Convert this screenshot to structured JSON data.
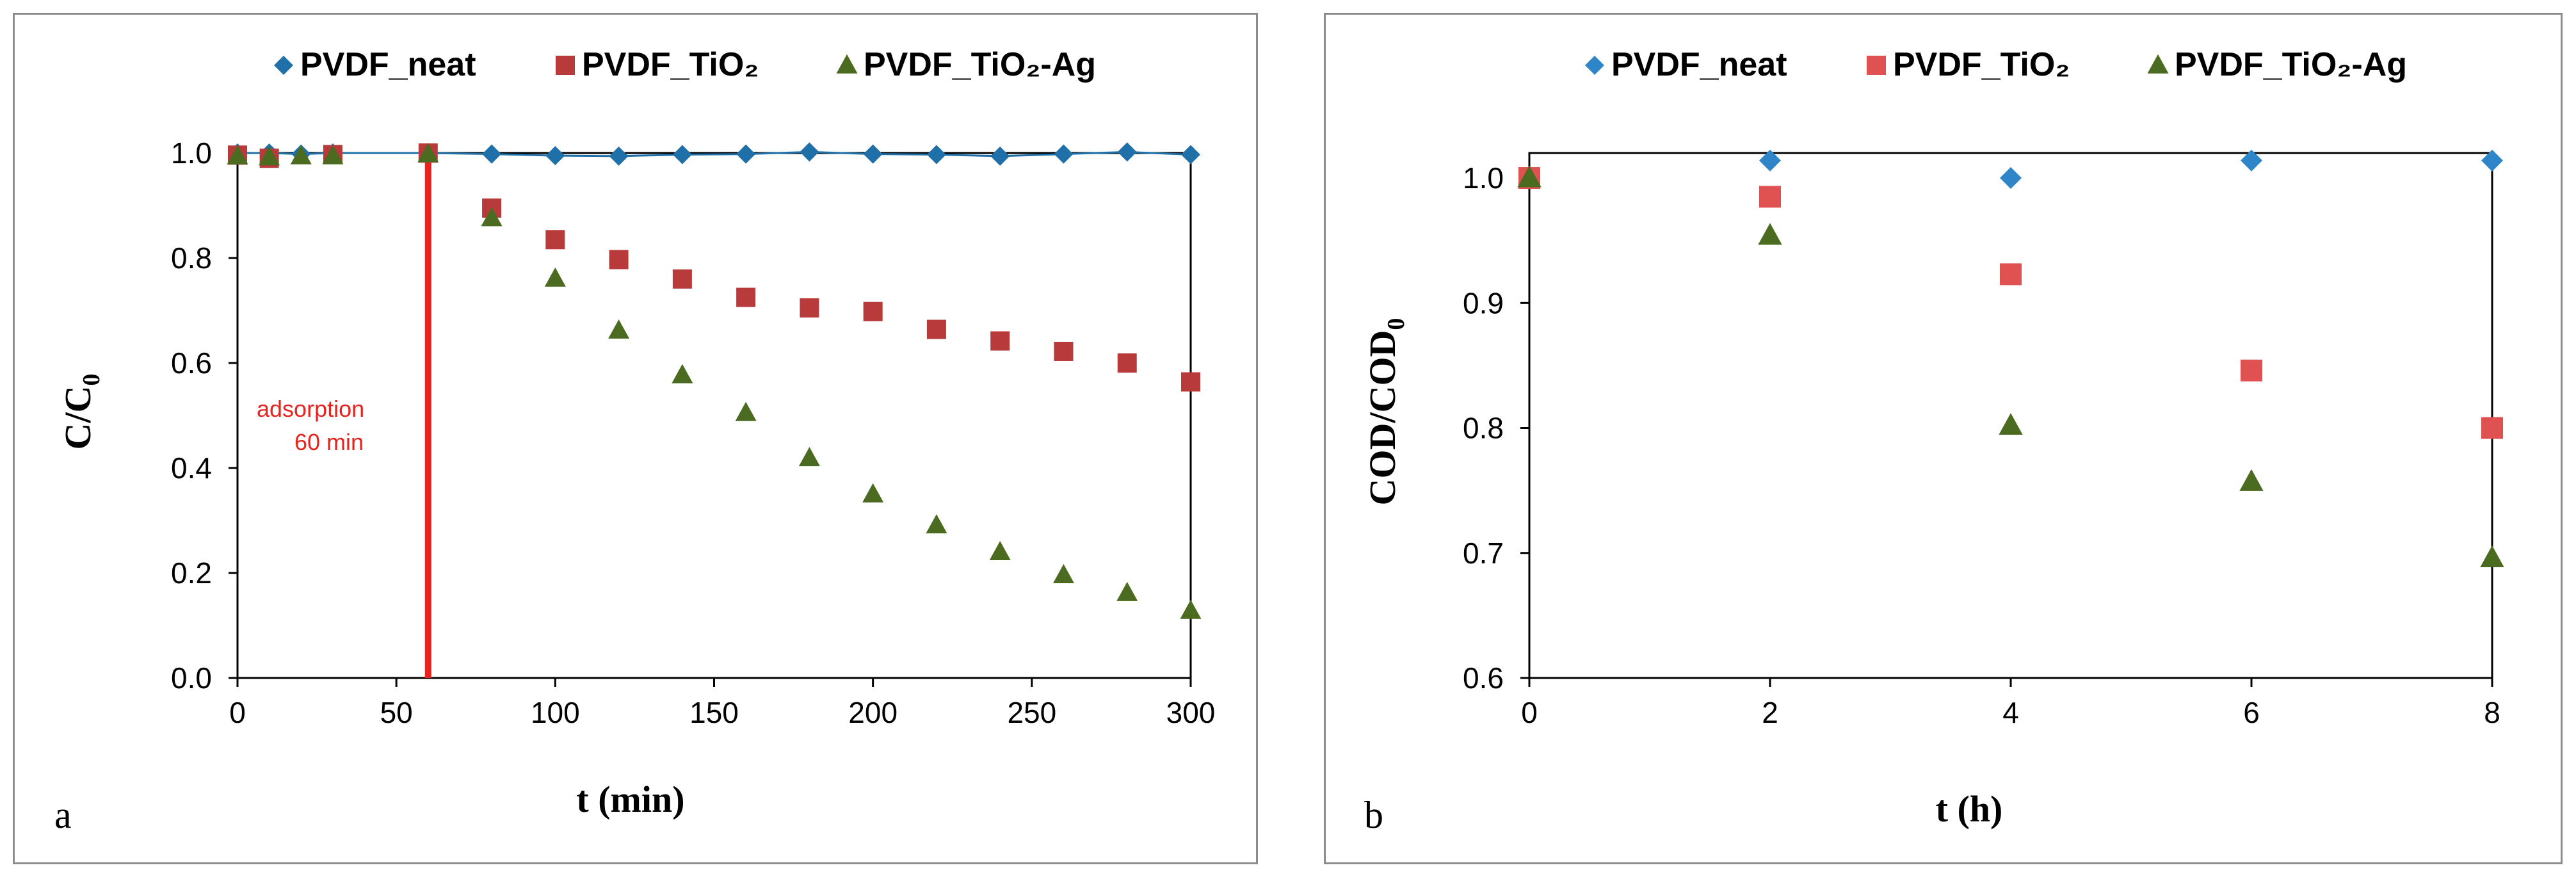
{
  "chart_data": [
    {
      "type": "scatter",
      "panel_label": "a",
      "xlabel": "t (min)",
      "ylabel_main": "C/C",
      "ylabel_sub": "0",
      "xlim": [
        0,
        300
      ],
      "ylim": [
        0,
        1.0
      ],
      "xticks": [
        0,
        50,
        100,
        150,
        200,
        250,
        300
      ],
      "yticks": [
        0.0,
        0.2,
        0.4,
        0.6,
        0.8,
        1.0
      ],
      "ytick_labels": [
        "0.0",
        "0.2",
        "0.4",
        "0.6",
        "0.8",
        "1.0"
      ],
      "grid": false,
      "legend_position": "top",
      "annotation": {
        "line1": "adsorption",
        "line2": "60 min",
        "vline_x": 60,
        "color": "#e8231e"
      },
      "series": [
        {
          "name": "PVDF_neat",
          "marker": "diamond",
          "color": "#1f6fa8",
          "line": true,
          "x": [
            0,
            10,
            20,
            30,
            60,
            80,
            100,
            120,
            140,
            160,
            180,
            200,
            220,
            240,
            260,
            280,
            300
          ],
          "y": [
            1.0,
            1.0,
            0.998,
            1.0,
            1.0,
            0.998,
            0.995,
            0.994,
            0.997,
            0.998,
            1.002,
            0.998,
            0.997,
            0.994,
            0.998,
            1.002,
            0.997
          ]
        },
        {
          "name": "PVDF_TiO₂",
          "marker": "square",
          "color": "#b83a3a",
          "line": false,
          "x": [
            0,
            10,
            30,
            60,
            80,
            100,
            120,
            140,
            160,
            180,
            200,
            220,
            240,
            260,
            280,
            300
          ],
          "y": [
            0.996,
            0.99,
            0.997,
            1.0,
            0.895,
            0.835,
            0.797,
            0.76,
            0.725,
            0.705,
            0.698,
            0.664,
            0.642,
            0.622,
            0.6,
            0.564
          ]
        },
        {
          "name": "PVDF_TiO₂-Ag",
          "marker": "triangle",
          "color": "#4b6b20",
          "line": false,
          "x": [
            0,
            10,
            20,
            30,
            60,
            80,
            100,
            120,
            140,
            160,
            180,
            200,
            220,
            240,
            260,
            280,
            300
          ],
          "y": [
            0.994,
            0.992,
            0.994,
            0.994,
            0.998,
            0.876,
            0.761,
            0.662,
            0.577,
            0.505,
            0.419,
            0.35,
            0.291,
            0.24,
            0.196,
            0.162,
            0.128
          ]
        }
      ]
    },
    {
      "type": "scatter",
      "panel_label": "b",
      "xlabel": "t (h)",
      "ylabel_main": "COD/COD",
      "ylabel_sub": "0",
      "xlim": [
        0,
        8
      ],
      "ylim": [
        0.6,
        1.02
      ],
      "xticks": [
        0,
        2,
        4,
        6,
        8
      ],
      "yticks": [
        0.6,
        0.7,
        0.8,
        0.9,
        1.0
      ],
      "ytick_labels": [
        "0.6",
        "0.7",
        "0.8",
        "0.9",
        "1.0"
      ],
      "grid": false,
      "legend_position": "top",
      "series": [
        {
          "name": "PVDF_neat",
          "marker": "diamond",
          "color": "#2e86c9",
          "line": false,
          "x": [
            0,
            2,
            4,
            6,
            8
          ],
          "y": [
            1.0,
            1.014,
            1.0,
            1.014,
            1.014
          ]
        },
        {
          "name": "PVDF_TiO₂",
          "marker": "square",
          "color": "#e05252",
          "line": false,
          "x": [
            0,
            2,
            4,
            6,
            8
          ],
          "y": [
            1.0,
            0.985,
            0.923,
            0.846,
            0.8
          ]
        },
        {
          "name": "PVDF_TiO₂-Ag",
          "marker": "triangle",
          "color": "#4b6b20",
          "line": false,
          "x": [
            0,
            2,
            4,
            6,
            8
          ],
          "y": [
            1.0,
            0.954,
            0.802,
            0.757,
            0.696
          ]
        }
      ]
    }
  ]
}
